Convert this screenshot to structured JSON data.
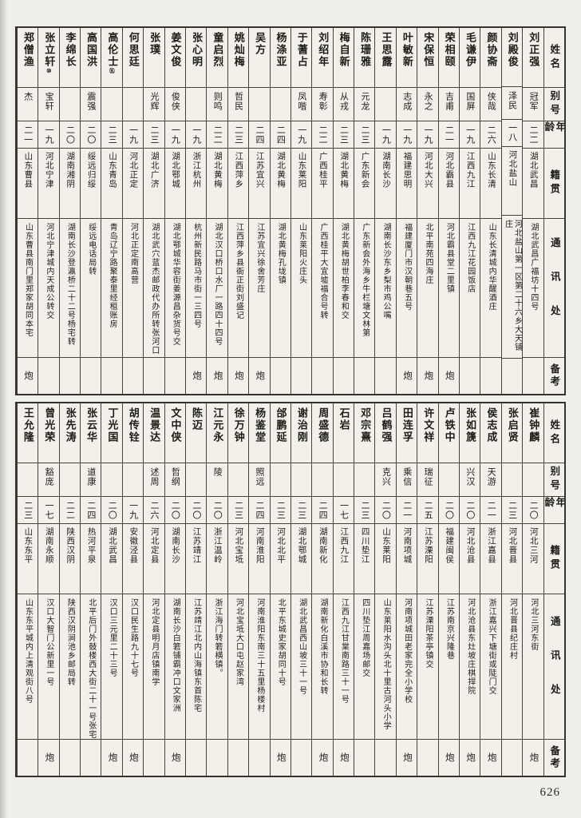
{
  "page": {
    "number": "626"
  },
  "header_labels": {
    "name": "姓名",
    "alias": "别号",
    "age": "年龄",
    "native_place": "籍贯",
    "address": "通讯处",
    "remarks": "备考"
  },
  "tables": [
    {
      "people": [
        {
          "name": "刘正强",
          "annotation": "",
          "alias": "冠军",
          "age": "二二",
          "native": "湖北武昌",
          "address": "湖北武昌广福坊十四号",
          "remark": ""
        },
        {
          "name": "刘殿俊",
          "annotation": "",
          "alias": "泽民",
          "age": "一八",
          "native": "河北盐山",
          "address": "河北盐山第一区第二十六乡大天铺庄",
          "remark": ""
        },
        {
          "name": "颜协斋",
          "annotation": "",
          "alias": "侠哉",
          "age": "二六",
          "native": "山东长清",
          "address": "山东长清城内华醒酒庄",
          "remark": ""
        },
        {
          "name": "毛谦伊",
          "annotation": "",
          "alias": "国屏",
          "age": "一九",
          "native": "江西九江",
          "address": "江西九江花园饭店",
          "remark": ""
        },
        {
          "name": "荣相颐",
          "annotation": "",
          "alias": "吉甫",
          "age": "二一",
          "native": "河北霸县",
          "address": "河北霸县堂二里镇",
          "remark": "炮"
        },
        {
          "name": "宋保恒",
          "annotation": "",
          "alias": "永之",
          "age": "一九",
          "native": "河北大兴",
          "address": "北平南苑四海庄",
          "remark": "炮"
        },
        {
          "name": "叶敏新",
          "annotation": "",
          "alias": "志成",
          "age": "一九",
          "native": "福建思明",
          "address": "福建厦门市汉朝巷五号",
          "remark": "炮"
        },
        {
          "name": "王思露",
          "annotation": "",
          "alias": "",
          "age": "一九",
          "native": "湖南长沙",
          "address": "湖南长沙东乡梨市鸡公嘴",
          "remark": ""
        },
        {
          "name": "陈珊雅",
          "annotation": "",
          "alias": "元龙",
          "age": "二三",
          "native": "广东新会",
          "address": "广东新会外海乡牛栏塘文林第",
          "remark": ""
        },
        {
          "name": "梅自新",
          "annotation": "",
          "alias": "从戎",
          "age": "二三",
          "native": "湖北黄梅",
          "address": "湖北黄梅胡世柏李春和交",
          "remark": ""
        },
        {
          "name": "刘绍年",
          "annotation": "",
          "alias": "寿彰",
          "age": "二二",
          "native": "广西桂平",
          "address": "广西桂平大宜墟福合号转",
          "remark": ""
        },
        {
          "name": "于蓍占",
          "annotation": "",
          "alias": "凤喈",
          "age": "一九",
          "native": "山东莱阳",
          "address": "山东莱阳火庄头",
          "remark": ""
        },
        {
          "name": "杨涤亚",
          "annotation": "",
          "alias": "",
          "age": "二四",
          "native": "湖北黄梅",
          "address": "湖北黄梅孔垅镇",
          "remark": ""
        },
        {
          "name": "吴方",
          "annotation": "",
          "alias": "",
          "age": "二四",
          "native": "江苏宜兴",
          "address": "江苏宜兴徐舍芳庄",
          "remark": "炮"
        },
        {
          "name": "姚灿梅",
          "annotation": "",
          "alias": "哲民",
          "age": "二三",
          "native": "江西萍乡",
          "address": "江西萍乡县衙正街刘盛记",
          "remark": "炮"
        },
        {
          "name": "童启烈",
          "annotation": "",
          "alias": "则鸣",
          "age": "二二",
          "native": "湖北黄梅",
          "address": "湖北汉口桥口水厂一路四十四号",
          "remark": "炮"
        },
        {
          "name": "张心明",
          "annotation": "",
          "alias": "",
          "age": "一九",
          "native": "浙江杭州",
          "address": "杭州新民路马市街一三四号",
          "remark": "炮"
        },
        {
          "name": "姜文俊",
          "annotation": "",
          "alias": "俊侠",
          "age": "一九",
          "native": "湖北鄂城",
          "address": "湖北鄂城华容街姜源昌杂货号交",
          "remark": ""
        },
        {
          "name": "张璞",
          "annotation": "",
          "alias": "光辉",
          "age": "二三",
          "native": "湖北广济",
          "address": "湖北武穴蓝杰邮政代办所转张河口",
          "remark": ""
        },
        {
          "name": "何思廷",
          "annotation": "",
          "alias": "",
          "age": "一九",
          "native": "河北正定",
          "address": "河北正定南高营",
          "remark": ""
        },
        {
          "name": "高伦士",
          "annotation": "㊄",
          "alias": "",
          "age": "二三",
          "native": "山东青岛",
          "address": "青岛辽宁路聚泰里经租账房",
          "remark": ""
        },
        {
          "name": "高国洪",
          "annotation": "",
          "alias": "震强",
          "age": "二〇",
          "native": "绥远归绥",
          "address": "绥远电话局转",
          "remark": ""
        },
        {
          "name": "李绵长",
          "annotation": "",
          "alias": "",
          "age": "二〇",
          "native": "湖南湘阴",
          "address": "湖南长沙登瀛桥二十二号杨宅转",
          "remark": ""
        },
        {
          "name": "张立轩",
          "annotation": "⑩",
          "alias": "宝轩",
          "age": "一九",
          "native": "河北宁津",
          "address": "河北宁津城内天成公转交",
          "remark": ""
        },
        {
          "name": "郑僧渔",
          "annotation": "",
          "alias": "杰",
          "age": "二一",
          "native": "山东曹县",
          "address": "山东曹县南门里郑家胡同本宅",
          "remark": "炮"
        }
      ]
    },
    {
      "people": [
        {
          "name": "崔钟麟",
          "annotation": "",
          "alias": "",
          "age": "二〇",
          "native": "河北三河",
          "address": "河北三河东街",
          "remark": "炮"
        },
        {
          "name": "张启贤",
          "annotation": "",
          "alias": "",
          "age": "二三",
          "native": "河北晋县",
          "address": "河北晋县纪庄村",
          "remark": ""
        },
        {
          "name": "侯志成",
          "annotation": "",
          "alias": "天游",
          "age": "二一",
          "native": "浙江嘉县",
          "address": "浙江嘉兴下塘街或陡门交",
          "remark": "炮"
        },
        {
          "name": "张如篪",
          "annotation": "",
          "alias": "兴汉",
          "age": "二〇",
          "native": "河北沧县",
          "address": "河北沧县东灶坡庄棋捍院",
          "remark": "炮"
        },
        {
          "name": "卢铁中",
          "annotation": "",
          "alias": "",
          "age": "二〇",
          "native": "福建闽侯",
          "address": "江苏南京兴隆巷",
          "remark": "炮"
        },
        {
          "name": "许文祥",
          "annotation": "",
          "alias": "瑞征",
          "age": "二五",
          "native": "江苏溧阳",
          "address": "江苏溧阳茶亭镇交",
          "remark": ""
        },
        {
          "name": "田连孚",
          "annotation": "",
          "alias": "乘信",
          "age": "二一",
          "native": "河南项城",
          "address": "河南项城田老家完全小学校",
          "remark": "炮"
        },
        {
          "name": "吕鹤强",
          "annotation": "",
          "alias": "克兴",
          "age": "二〇",
          "native": "山东莱阳",
          "address": "山东莱阳水沟头北十里古河头小学",
          "remark": ""
        },
        {
          "name": "邓宗熹",
          "annotation": "",
          "alias": "",
          "age": "二三",
          "native": "四川垫江",
          "address": "四川垫江周嘉场邮交",
          "remark": ""
        },
        {
          "name": "石岩",
          "annotation": "",
          "alias": "",
          "age": "一七",
          "native": "江西九江",
          "address": "江西九江甘棠南路三十一号",
          "remark": "炮"
        },
        {
          "name": "周盛德",
          "annotation": "",
          "alias": "",
          "age": "二四",
          "native": "湖南新化",
          "address": "湖南新化白溪市协和长转",
          "remark": "炮"
        },
        {
          "name": "谢治刚",
          "annotation": "",
          "alias": "",
          "age": "二三",
          "native": "湖北鄂城",
          "address": "湖北武昌西山坡三十一号",
          "remark": ""
        },
        {
          "name": "邰鹏延",
          "annotation": "",
          "alias": "",
          "age": "二三",
          "native": "河北北平",
          "address": "北平东城史家胡同十号",
          "remark": "炮"
        },
        {
          "name": "杨鉴堂",
          "annotation": "",
          "alias": "照远",
          "age": "二四",
          "native": "河南淮阳",
          "address": "河南淮阳东南三十五里杨楼村",
          "remark": ""
        },
        {
          "name": "徐万钟",
          "annotation": "",
          "alias": "",
          "age": "二三",
          "native": "河北宝坻",
          "address": "河北宝坻大口屯赵家湾",
          "remark": ""
        },
        {
          "name": "江元永",
          "annotation": "",
          "alias": "陵",
          "age": "二〇",
          "native": "浙江温岭",
          "address": "浙江海门转箬横镇。",
          "remark": ""
        },
        {
          "name": "陈迈",
          "annotation": "",
          "alias": "",
          "age": "二〇",
          "native": "江苏靖江",
          "address": "江苏靖江北内山海镇东首陈宅",
          "remark": ""
        },
        {
          "name": "文中侠",
          "annotation": "",
          "alias": "哲纲",
          "age": "二〇",
          "native": "湖南长沙",
          "address": "湖南长沙白箬铺霸冲口文家洲",
          "remark": "炮"
        },
        {
          "name": "温景达",
          "annotation": "",
          "alias": "述周",
          "age": "二六",
          "native": "河北定县",
          "address": "河北定县明月店镇南学",
          "remark": ""
        },
        {
          "name": "胡传铨",
          "annotation": "",
          "alias": "",
          "age": "一九",
          "native": "安徽泾县",
          "address": "汉口民生路九十七号",
          "remark": "炮"
        },
        {
          "name": "丁光国",
          "annotation": "",
          "alias": "",
          "age": "二〇",
          "native": "湖北武昌",
          "address": "汉口三元里二十三号",
          "remark": "炮"
        },
        {
          "name": "张云华",
          "annotation": "",
          "alias": "道康",
          "age": "二四",
          "native": "热河平泉",
          "address": "北平后门外鼓楼西大街二十一号张宅",
          "remark": ""
        },
        {
          "name": "张先涛",
          "annotation": "",
          "alias": "",
          "age": "二二",
          "native": "陕西汉阴",
          "address": "陕西汉阴涧池乡邮局转",
          "remark": ""
        },
        {
          "name": "曾光荣",
          "annotation": "",
          "alias": "豁庞",
          "age": "一七",
          "native": "湖南永顺",
          "address": "汉口大智门公新里一号",
          "remark": "炮"
        },
        {
          "name": "王允隆",
          "annotation": "",
          "alias": "",
          "age": "二三",
          "native": "山东东平",
          "address": "山东东平城内上清观街八号",
          "remark": ""
        }
      ]
    }
  ]
}
